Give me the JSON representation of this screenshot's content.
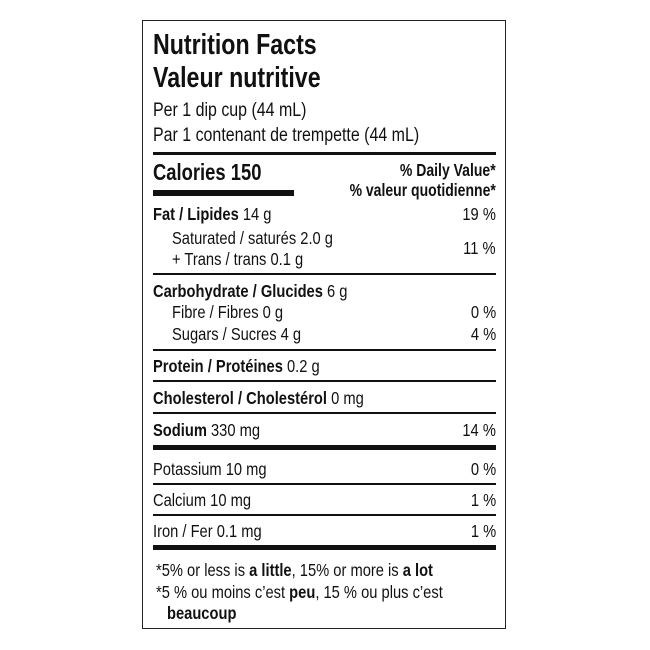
{
  "title_en": "Nutrition Facts",
  "title_fr": "Valeur nutritive",
  "serving_en": "Per 1 dip cup (44 mL)",
  "serving_fr": "Par 1 contenant de trempette (44 mL)",
  "calories": {
    "label": "Calories",
    "value": "150"
  },
  "dv_header_en": "% Daily Value",
  "dv_header_fr": "% valeur quotidienne",
  "asterisk": "*",
  "fat": {
    "label": "Fat / Lipides",
    "amount": "14 g",
    "dv": "19 %"
  },
  "saturated": {
    "label": "Saturated / saturés 2.0 g"
  },
  "trans": {
    "label": "+ Trans / trans 0.1 g"
  },
  "sat_trans_dv": "11 %",
  "carbohydrate": {
    "label": "Carbohydrate / Glucides",
    "amount": "6 g"
  },
  "fibre": {
    "label": "Fibre / Fibres 0 g",
    "dv": "0 %"
  },
  "sugars": {
    "label": "Sugars / Sucres 4 g",
    "dv": "4 %"
  },
  "protein": {
    "label": "Protein / Protéines",
    "amount": "0.2 g"
  },
  "cholesterol": {
    "label": "Cholesterol / Cholestérol",
    "amount": "0 mg"
  },
  "sodium": {
    "label": "Sodium",
    "amount": "330 mg",
    "dv": "14 %"
  },
  "potassium": {
    "label": "Potassium 10 mg",
    "dv": "0 %"
  },
  "calcium": {
    "label": "Calcium 10 mg",
    "dv": "1 %"
  },
  "iron": {
    "label": "Iron / Fer 0.1 mg",
    "dv": "1 %"
  },
  "footnote_en": {
    "p1": "*5% or less is ",
    "b1": "a little",
    "p2": ", 15% or more is ",
    "b2": "a lot"
  },
  "footnote_fr": {
    "p1": "*5 % ou moins c’est ",
    "b1": "peu",
    "p2": ", 15 % ou plus c’est",
    "b2": "beaucoup"
  }
}
